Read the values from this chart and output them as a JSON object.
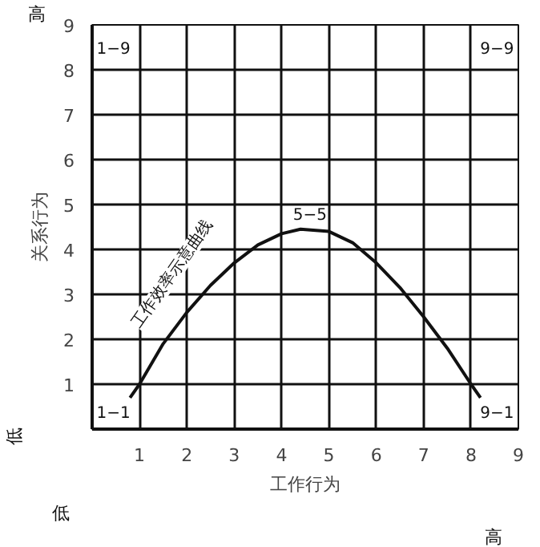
{
  "chart_data": {
    "type": "line",
    "xlabel": "工作行为",
    "ylabel": "关系行为",
    "x": [
      0.8,
      1,
      1.5,
      2,
      2.5,
      3,
      3.5,
      4,
      4.4,
      5,
      5.5,
      6,
      6.5,
      7,
      7.5,
      8,
      8.2
    ],
    "series": [
      {
        "color": "#111111",
        "values": [
          0.7,
          1.0,
          1.9,
          2.6,
          3.2,
          3.7,
          4.1,
          4.35,
          4.45,
          4.4,
          4.15,
          3.7,
          3.15,
          2.5,
          1.8,
          1.0,
          0.7
        ]
      }
    ],
    "xlim": [
      0,
      9
    ],
    "ylim": [
      0,
      9
    ],
    "xticks": [
      1,
      2,
      3,
      4,
      5,
      6,
      7,
      8,
      9
    ],
    "yticks": [
      1,
      2,
      3,
      4,
      5,
      6,
      7,
      8,
      9
    ],
    "grid": true,
    "marker": "none",
    "line_style": "solid",
    "annotations": [
      "1−9",
      "9−9",
      "5−5",
      "1−1",
      "9−1",
      "工作效率示意曲线",
      "高",
      "低",
      "低",
      "高"
    ]
  }
}
